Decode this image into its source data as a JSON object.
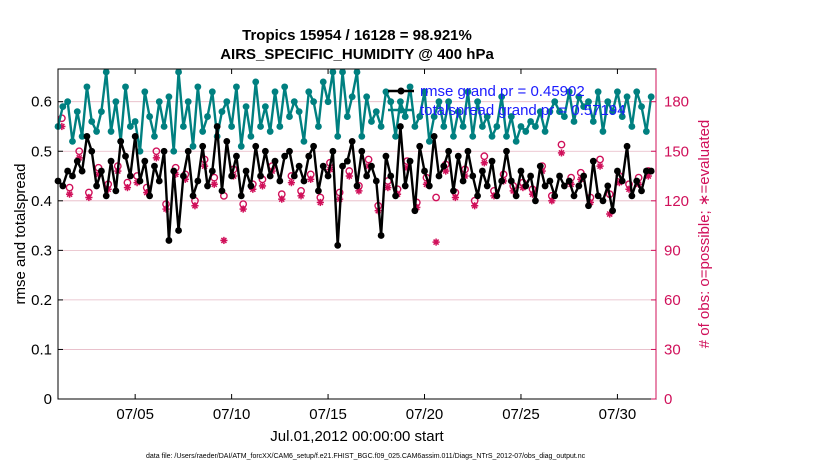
{
  "chart_data": {
    "type": "line",
    "title_line1": "Tropics 15954 / 16128 = 98.921%",
    "title_line2": "AIRS_SPECIFIC_HUMIDITY @ 400 hPa",
    "xlabel": "Jul.01,2012 00:00:00 start",
    "ylabel": "rmse and totalspread",
    "y2label": "# of obs: o=possible; ∗=evaluated",
    "xlim": [
      1,
      32
    ],
    "ylim": [
      0,
      0.666
    ],
    "y2lim": [
      0,
      199.8
    ],
    "xticks": [
      5,
      10,
      15,
      20,
      25,
      30
    ],
    "xticklabels": [
      "07/05",
      "07/10",
      "07/15",
      "07/20",
      "07/25",
      "07/30"
    ],
    "yticks": [
      0,
      0.1,
      0.2,
      0.3,
      0.4,
      0.5,
      0.6
    ],
    "yticklabels": [
      "0",
      "0.1",
      "0.2",
      "0.3",
      "0.4",
      "0.5",
      "0.6"
    ],
    "y2ticks": [
      0,
      30,
      60,
      90,
      120,
      150,
      180
    ],
    "y2ticklabels": [
      "0",
      "30",
      "60",
      "90",
      "120",
      "150",
      "180"
    ],
    "legend": [
      "rmse grand pr = 0.45902",
      "totalspread grand pr = 0.57194"
    ],
    "colors": {
      "rmse": "#000000",
      "spread": "#008080",
      "obs": "#d0105a",
      "grid": "#e6b8c4"
    },
    "series": [
      {
        "name": "rmse",
        "x": [
          1.0,
          1.25,
          1.5,
          1.75,
          2.0,
          2.25,
          2.5,
          2.75,
          3.0,
          3.25,
          3.5,
          3.75,
          4.0,
          4.25,
          4.5,
          4.75,
          5.0,
          5.25,
          5.5,
          5.75,
          6.0,
          6.25,
          6.5,
          6.75,
          7.0,
          7.25,
          7.5,
          7.75,
          8.0,
          8.25,
          8.5,
          8.75,
          9.0,
          9.25,
          9.5,
          9.75,
          10.0,
          10.25,
          10.5,
          10.75,
          11.0,
          11.25,
          11.5,
          11.75,
          12.0,
          12.25,
          12.5,
          12.75,
          13.0,
          13.25,
          13.5,
          13.75,
          14.0,
          14.25,
          14.5,
          14.75,
          15.0,
          15.25,
          15.5,
          15.75,
          16.0,
          16.25,
          16.5,
          16.75,
          17.0,
          17.25,
          17.5,
          17.75,
          18.0,
          18.25,
          18.5,
          18.75,
          19.0,
          19.25,
          19.5,
          19.75,
          20.0,
          20.25,
          20.5,
          20.75,
          21.0,
          21.25,
          21.5,
          21.75,
          22.0,
          22.25,
          22.5,
          22.75,
          23.0,
          23.25,
          23.5,
          23.75,
          24.0,
          24.25,
          24.5,
          24.75,
          25.0,
          25.25,
          25.5,
          25.75,
          26.0,
          26.25,
          26.5,
          26.75,
          27.0,
          27.25,
          27.5,
          27.75,
          28.0,
          28.25,
          28.5,
          28.75,
          29.0,
          29.25,
          29.5,
          29.75,
          30.0,
          30.25,
          30.5,
          30.75,
          31.0,
          31.25,
          31.5,
          31.75
        ],
        "values": [
          0.44,
          0.43,
          0.46,
          0.45,
          0.48,
          0.46,
          0.53,
          0.5,
          0.43,
          0.46,
          0.41,
          0.48,
          0.42,
          0.52,
          0.49,
          0.45,
          0.53,
          0.44,
          0.48,
          0.41,
          0.47,
          0.44,
          0.5,
          0.32,
          0.46,
          0.34,
          0.45,
          0.5,
          0.41,
          0.44,
          0.51,
          0.43,
          0.46,
          0.55,
          0.42,
          0.52,
          0.45,
          0.49,
          0.41,
          0.46,
          0.43,
          0.51,
          0.45,
          0.5,
          0.45,
          0.48,
          0.44,
          0.49,
          0.5,
          0.45,
          0.47,
          0.44,
          0.49,
          0.51,
          0.42,
          0.47,
          0.45,
          0.5,
          0.31,
          0.47,
          0.48,
          0.52,
          0.43,
          0.5,
          0.45,
          0.47,
          0.44,
          0.33,
          0.49,
          0.45,
          0.41,
          0.55,
          0.43,
          0.48,
          0.38,
          0.51,
          0.46,
          0.43,
          0.53,
          0.45,
          0.47,
          0.5,
          0.42,
          0.49,
          0.44,
          0.5,
          0.45,
          0.41,
          0.46,
          0.43,
          0.48,
          0.41,
          0.44,
          0.5,
          0.44,
          0.41,
          0.46,
          0.43,
          0.45,
          0.4,
          0.47,
          0.43,
          0.44,
          0.41,
          0.45,
          0.43,
          0.44,
          0.41,
          0.43,
          0.45,
          0.39,
          0.48,
          0.41,
          0.4,
          0.43,
          0.38,
          0.46,
          0.44,
          0.51,
          0.41,
          0.44,
          0.42,
          0.46,
          0.46
        ]
      },
      {
        "name": "totalspread",
        "x": [
          1.0,
          1.25,
          1.5,
          1.75,
          2.0,
          2.25,
          2.5,
          2.75,
          3.0,
          3.25,
          3.5,
          3.75,
          4.0,
          4.25,
          4.5,
          4.75,
          5.0,
          5.25,
          5.5,
          5.75,
          6.0,
          6.25,
          6.5,
          6.75,
          7.0,
          7.25,
          7.5,
          7.75,
          8.0,
          8.25,
          8.5,
          8.75,
          9.0,
          9.25,
          9.5,
          9.75,
          10.0,
          10.25,
          10.5,
          10.75,
          11.0,
          11.25,
          11.5,
          11.75,
          12.0,
          12.25,
          12.5,
          12.75,
          13.0,
          13.25,
          13.5,
          13.75,
          14.0,
          14.25,
          14.5,
          14.75,
          15.0,
          15.25,
          15.5,
          15.75,
          16.0,
          16.25,
          16.5,
          16.75,
          17.0,
          17.25,
          17.5,
          17.75,
          18.0,
          18.25,
          18.5,
          18.75,
          19.0,
          19.25,
          19.5,
          19.75,
          20.0,
          20.25,
          20.5,
          20.75,
          21.0,
          21.25,
          21.5,
          21.75,
          22.0,
          22.25,
          22.5,
          22.75,
          23.0,
          23.25,
          23.5,
          23.75,
          24.0,
          24.25,
          24.5,
          24.75,
          25.0,
          25.25,
          25.5,
          25.75,
          26.0,
          26.25,
          26.5,
          26.75,
          27.0,
          27.25,
          27.5,
          27.75,
          28.0,
          28.25,
          28.5,
          28.75,
          29.0,
          29.25,
          29.5,
          29.75,
          30.0,
          30.25,
          30.5,
          30.75,
          31.0,
          31.25,
          31.5,
          31.75
        ],
        "values": [
          0.55,
          0.59,
          0.6,
          0.52,
          0.58,
          0.53,
          0.63,
          0.56,
          0.54,
          0.58,
          0.66,
          0.54,
          0.6,
          0.52,
          0.63,
          0.55,
          0.56,
          0.5,
          0.62,
          0.57,
          0.53,
          0.6,
          0.55,
          0.61,
          0.5,
          0.66,
          0.55,
          0.6,
          0.51,
          0.63,
          0.54,
          0.57,
          0.62,
          0.53,
          0.58,
          0.6,
          0.55,
          0.63,
          0.51,
          0.59,
          0.53,
          0.64,
          0.55,
          0.59,
          0.54,
          0.62,
          0.55,
          0.63,
          0.57,
          0.6,
          0.58,
          0.52,
          0.62,
          0.6,
          0.55,
          0.64,
          0.6,
          0.66,
          0.53,
          0.66,
          0.57,
          0.61,
          0.66,
          0.53,
          0.61,
          0.56,
          0.58,
          0.55,
          0.62,
          0.6,
          0.53,
          0.6,
          0.57,
          0.63,
          0.55,
          0.57,
          0.62,
          0.52,
          0.57,
          0.6,
          0.55,
          0.6,
          0.53,
          0.58,
          0.55,
          0.62,
          0.53,
          0.6,
          0.55,
          0.57,
          0.53,
          0.55,
          0.61,
          0.53,
          0.57,
          0.52,
          0.55,
          0.54,
          0.56,
          0.55,
          0.58,
          0.54,
          0.58,
          0.6,
          0.58,
          0.57,
          0.62,
          0.56,
          0.61,
          0.59,
          0.6,
          0.56,
          0.62,
          0.54,
          0.6,
          0.58,
          0.62,
          0.57,
          0.61,
          0.55,
          0.62,
          0.59,
          0.54,
          0.61
        ]
      },
      {
        "name": "obs possible",
        "axis": "right",
        "marker": "o",
        "x": [
          1.2,
          1.6,
          2.1,
          2.6,
          3.1,
          3.6,
          4.1,
          4.6,
          5.1,
          5.6,
          6.1,
          6.6,
          7.1,
          7.6,
          8.1,
          8.6,
          9.1,
          9.6,
          10.1,
          10.6,
          11.1,
          11.6,
          12.1,
          12.6,
          13.1,
          13.6,
          14.1,
          14.6,
          15.1,
          15.6,
          16.1,
          16.6,
          17.1,
          17.6,
          18.1,
          18.6,
          19.1,
          19.6,
          20.1,
          20.6,
          21.1,
          21.6,
          22.1,
          22.6,
          23.1,
          23.6,
          24.1,
          24.6,
          25.1,
          25.6,
          26.1,
          26.6,
          27.1,
          27.6,
          28.1,
          28.6,
          29.1,
          29.6,
          30.1,
          30.6,
          31.1,
          31.6
        ],
        "values": [
          170,
          128,
          150,
          125,
          140,
          130,
          141,
          131,
          135,
          128,
          150,
          118,
          140,
          136,
          120,
          145,
          134,
          123,
          139,
          118,
          130,
          133,
          141,
          124,
          135,
          126,
          136,
          122,
          143,
          125,
          138,
          129,
          145,
          117,
          132,
          127,
          144,
          119,
          134,
          122,
          142,
          125,
          139,
          120,
          147,
          126,
          136,
          129,
          131,
          127,
          141,
          123,
          154,
          134,
          137,
          122,
          145,
          124,
          135,
          130,
          134,
          138
        ]
      },
      {
        "name": "obs evaluated",
        "axis": "right",
        "marker": "*",
        "x": [
          1.2,
          1.6,
          2.1,
          2.6,
          3.1,
          3.6,
          4.1,
          4.6,
          5.1,
          5.6,
          6.1,
          6.6,
          7.1,
          7.6,
          8.1,
          8.6,
          9.1,
          9.6,
          10.1,
          10.6,
          11.1,
          11.6,
          12.1,
          12.6,
          13.1,
          13.6,
          14.1,
          14.6,
          15.1,
          15.6,
          16.1,
          16.6,
          17.1,
          17.6,
          18.1,
          18.6,
          19.1,
          19.6,
          20.1,
          20.6,
          21.1,
          21.6,
          22.1,
          22.6,
          23.1,
          23.6,
          24.1,
          24.6,
          25.1,
          25.6,
          26.1,
          26.6,
          27.1,
          27.6,
          28.1,
          28.6,
          29.1,
          29.6,
          30.1,
          30.6,
          31.1,
          31.6
        ],
        "values": [
          165,
          124,
          146,
          122,
          136,
          127,
          138,
          128,
          131,
          125,
          146,
          115,
          136,
          133,
          117,
          141,
          130,
          96,
          135,
          115,
          127,
          129,
          138,
          121,
          131,
          123,
          133,
          119,
          139,
          121,
          135,
          126,
          141,
          114,
          128,
          124,
          140,
          116,
          130,
          95,
          138,
          122,
          135,
          117,
          143,
          123,
          132,
          126,
          128,
          124,
          138,
          120,
          149,
          130,
          133,
          119,
          141,
          112,
          131,
          127,
          130,
          135
        ]
      }
    ]
  },
  "footer": "data file: /Users/raeder/DAI/ATM_forcXX/CAM6_setup/f.e21.FHIST_BGC.f09_025.CAM6assim.011/Diags_NTrS_2012-07/obs_diag_output.nc"
}
